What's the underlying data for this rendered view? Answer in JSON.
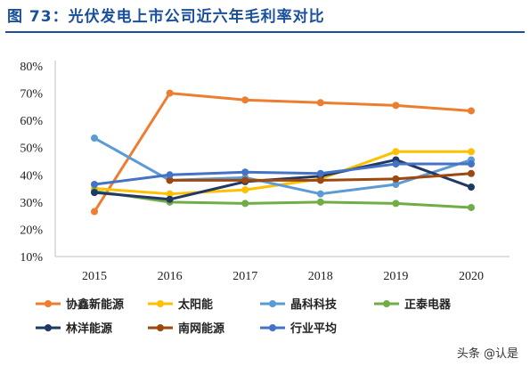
{
  "figure": {
    "title": "图 73：光伏发电上市公司近六年毛利率对比",
    "watermark": "头条 @认是"
  },
  "colors": {
    "title": "#1a4f9c",
    "axis": "#bfbfbf"
  },
  "chart_data": {
    "type": "line",
    "title": "",
    "xlabel": "",
    "ylabel": "",
    "x": [
      "2015",
      "2016",
      "2017",
      "2018",
      "2019",
      "2020"
    ],
    "ylim": [
      10,
      80
    ],
    "yticks": [
      "10%",
      "20%",
      "30%",
      "40%",
      "50%",
      "60%",
      "70%",
      "80%"
    ],
    "grid": false,
    "legend_position": "bottom",
    "series": [
      {
        "name": "协鑫新能源",
        "color": "#ed7d31",
        "values": [
          26.5,
          70,
          67.5,
          66.5,
          65.5,
          63.5
        ]
      },
      {
        "name": "太阳能",
        "color": "#ffc000",
        "values": [
          35,
          33,
          34.5,
          38.5,
          48.5,
          48.5
        ]
      },
      {
        "name": "晶科科技",
        "color": "#5b9bd5",
        "values": [
          53.5,
          38,
          39,
          33,
          36.5,
          45.5
        ]
      },
      {
        "name": "正泰电器",
        "color": "#70ad47",
        "values": [
          34,
          30,
          29.5,
          30,
          29.5,
          28
        ]
      },
      {
        "name": "林洋能源",
        "color": "#203864",
        "values": [
          33.5,
          31,
          37.5,
          39.5,
          45.5,
          35.5
        ]
      },
      {
        "name": "南网能源",
        "color": "#9e480e",
        "values": [
          null,
          38,
          38,
          38,
          38.5,
          40.5
        ]
      },
      {
        "name": "行业平均",
        "color": "#4472c4",
        "values": [
          36.5,
          40,
          41,
          40.5,
          44,
          44
        ]
      }
    ]
  }
}
